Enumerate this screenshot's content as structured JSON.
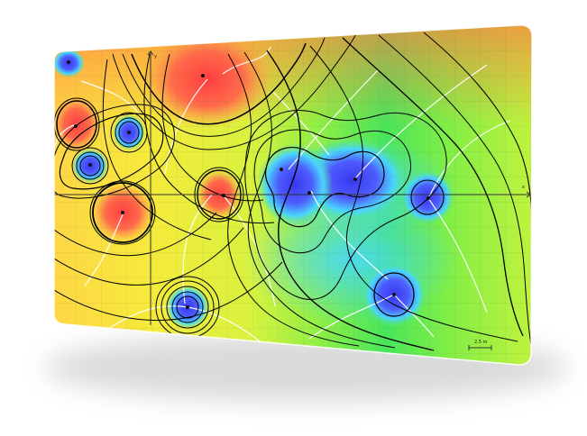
{
  "card": {
    "corner_radius_hint": "rounded",
    "background": "#ffffff",
    "shadow": "#7a7a7a"
  },
  "axes": {
    "x_label": "x",
    "y_label": "y"
  },
  "scale_bar": {
    "label": "2.5 m"
  },
  "colors": {
    "field_ramp": [
      "#3d3cf0",
      "#45c8ff",
      "#37e85f",
      "#b9f53e",
      "#f7ee38",
      "#ffb24d",
      "#ff5a4a"
    ],
    "contour": "#000000",
    "streamline": "#ffffff",
    "axis": "#333333"
  },
  "point_markers": [
    {
      "id": "p-top-left",
      "kind": "source"
    },
    {
      "id": "p-top-center",
      "kind": "source"
    },
    {
      "id": "p-left-red-1",
      "kind": "source"
    },
    {
      "id": "p-left-blue-1",
      "kind": "sink"
    },
    {
      "id": "p-left-blue-2",
      "kind": "sink"
    },
    {
      "id": "p-left-red-2",
      "kind": "source"
    },
    {
      "id": "p-center-red",
      "kind": "source"
    },
    {
      "id": "p-center-blue-1",
      "kind": "sink"
    },
    {
      "id": "p-center-blue-2",
      "kind": "sink"
    },
    {
      "id": "p-center-blue-3",
      "kind": "sink"
    },
    {
      "id": "p-right-blue",
      "kind": "sink"
    },
    {
      "id": "p-bottom-right-blue",
      "kind": "sink"
    },
    {
      "id": "p-bottom-left-blue",
      "kind": "sink"
    }
  ]
}
